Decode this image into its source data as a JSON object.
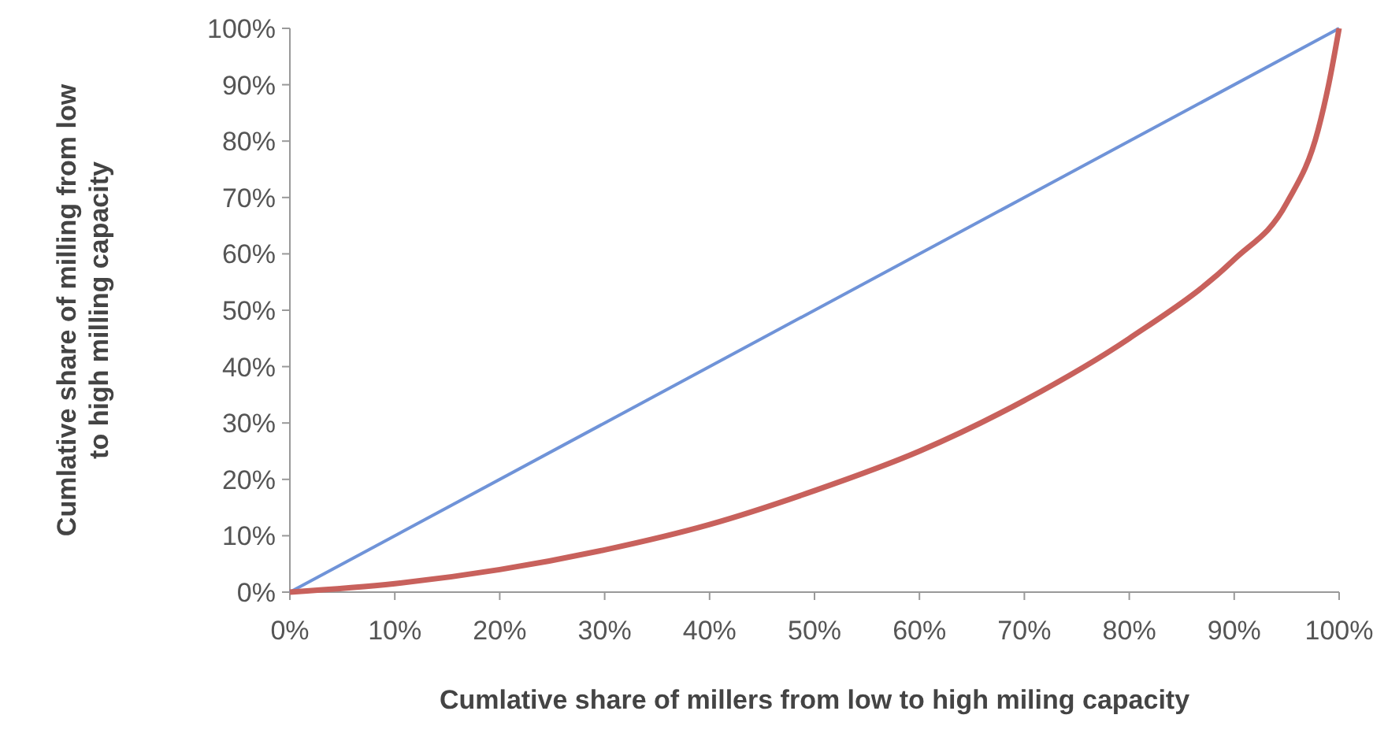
{
  "chart_data": {
    "type": "line",
    "xlabel": "Cumlative share of millers from low to high miling capacity",
    "ylabel": "Cumlative share of milling from low to high milling capacity",
    "xlim": [
      0,
      100
    ],
    "ylim": [
      0,
      100
    ],
    "xticks": [
      {
        "value": 0,
        "label": "0%"
      },
      {
        "value": 10,
        "label": "10%"
      },
      {
        "value": 20,
        "label": "20%"
      },
      {
        "value": 30,
        "label": "30%"
      },
      {
        "value": 40,
        "label": "40%"
      },
      {
        "value": 50,
        "label": "50%"
      },
      {
        "value": 60,
        "label": "60%"
      },
      {
        "value": 70,
        "label": "70%"
      },
      {
        "value": 80,
        "label": "80%"
      },
      {
        "value": 90,
        "label": "90%"
      },
      {
        "value": 100,
        "label": "100%"
      }
    ],
    "yticks": [
      {
        "value": 0,
        "label": "0%"
      },
      {
        "value": 10,
        "label": "10%"
      },
      {
        "value": 20,
        "label": "20%"
      },
      {
        "value": 30,
        "label": "30%"
      },
      {
        "value": 40,
        "label": "40%"
      },
      {
        "value": 50,
        "label": "50%"
      },
      {
        "value": 60,
        "label": "60%"
      },
      {
        "value": 70,
        "label": "70%"
      },
      {
        "value": 80,
        "label": "80%"
      },
      {
        "value": 90,
        "label": "90%"
      },
      {
        "value": 100,
        "label": "100%"
      }
    ],
    "grid": false,
    "series": [
      {
        "color": "#6f93d8",
        "x": [
          0,
          100
        ],
        "values": [
          0,
          100
        ]
      },
      {
        "color": "#c8615c",
        "x": [
          0,
          10,
          20,
          30,
          40,
          50,
          60,
          70,
          80,
          90,
          95,
          98,
          99,
          100
        ],
        "values": [
          0,
          1.5,
          4,
          7.5,
          12,
          18,
          25,
          34,
          45,
          59,
          69,
          82,
          90,
          100
        ]
      }
    ]
  }
}
